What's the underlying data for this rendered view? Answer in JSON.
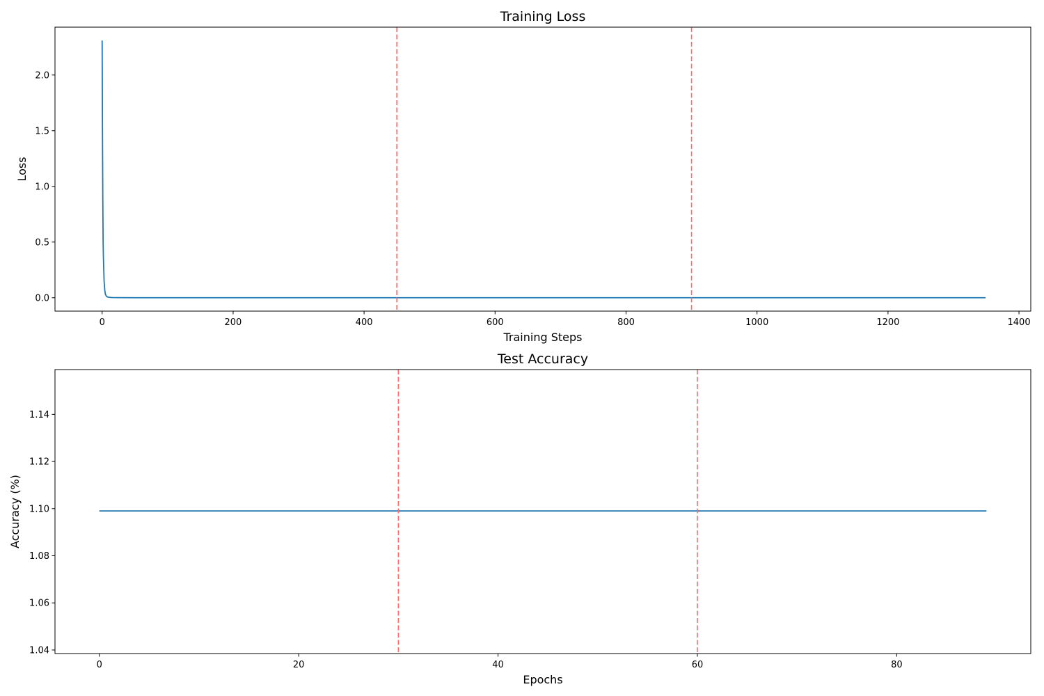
{
  "chart_data": [
    {
      "type": "line",
      "title": "Training Loss",
      "xlabel": "Training Steps",
      "ylabel": "Loss",
      "xlim": [
        -72,
        1418
      ],
      "ylim": [
        -0.12,
        2.43
      ],
      "xticks": [
        0,
        200,
        400,
        600,
        800,
        1000,
        1200,
        1400
      ],
      "yticks": [
        0.0,
        0.5,
        1.0,
        1.5,
        2.0
      ],
      "ytick_format": 1,
      "grid": false,
      "series": [
        {
          "color": "#1f77b4",
          "x": [
            0,
            0.5,
            1,
            1.5,
            2,
            3,
            4,
            5,
            7,
            10,
            15,
            25,
            50,
            100,
            200,
            450,
            900,
            1349
          ],
          "y": [
            2.31,
            1.5,
            0.9,
            0.5,
            0.35,
            0.15,
            0.07,
            0.03,
            0.01,
            0.004,
            0.002,
            0.001,
            0.0005,
            0.0003,
            0.0002,
            0.0001,
            0.0001,
            0.0001
          ]
        }
      ],
      "vlines": [
        {
          "x": 450,
          "color": "#ff6b6b"
        },
        {
          "x": 900,
          "color": "#ff6b6b"
        }
      ]
    },
    {
      "type": "line",
      "title": "Test Accuracy",
      "xlabel": "Epochs",
      "ylabel": "Accuracy (%)",
      "xlim": [
        -4.45,
        93.45
      ],
      "ylim": [
        1.0385,
        1.159
      ],
      "xticks": [
        0,
        20,
        40,
        60,
        80
      ],
      "yticks": [
        1.04,
        1.06,
        1.08,
        1.1,
        1.12,
        1.14
      ],
      "ytick_format": 2,
      "grid": false,
      "series": [
        {
          "color": "#1f77b4",
          "x": [
            0,
            89
          ],
          "y": [
            1.099,
            1.099
          ]
        }
      ],
      "vlines": [
        {
          "x": 30,
          "color": "#ff6b6b"
        },
        {
          "x": 60,
          "color": "#ff6b6b"
        }
      ]
    }
  ]
}
